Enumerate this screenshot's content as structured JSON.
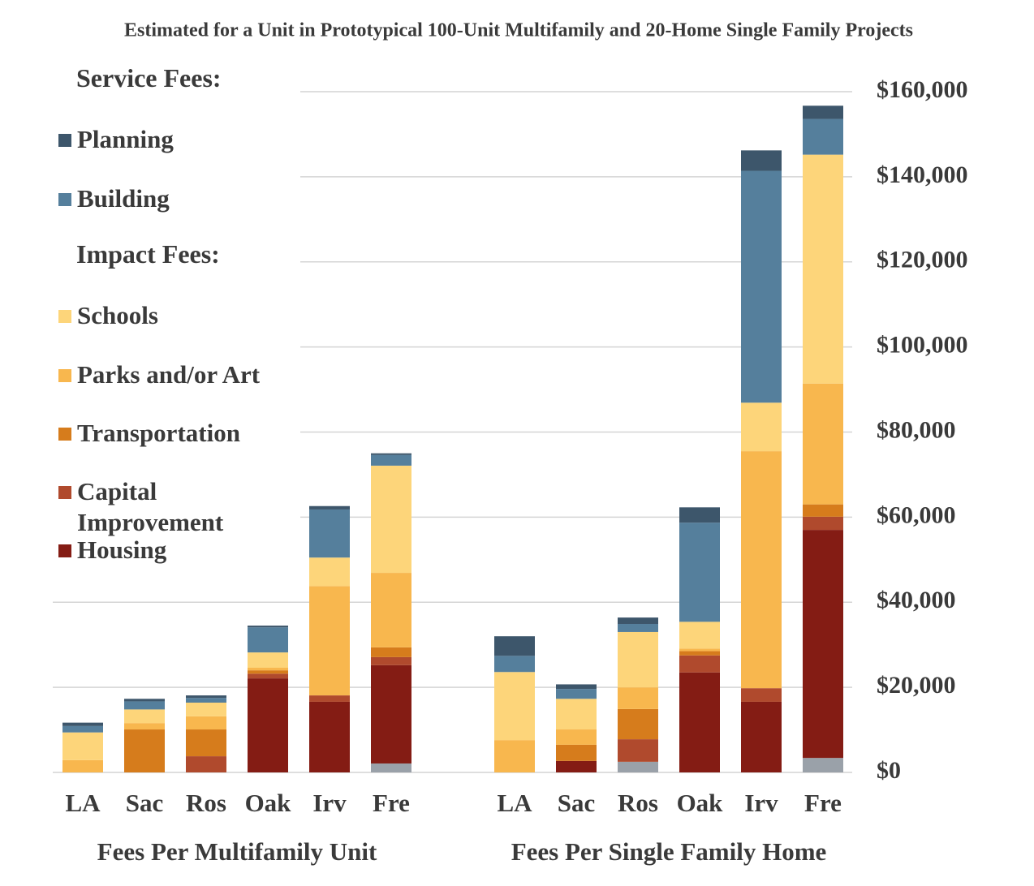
{
  "chart_data": {
    "type": "stacked-bar",
    "title": "Estimated for a Unit in Prototypical 100-Unit Multifamily and 20-Home Single Family Projects",
    "legend_headings": [
      "Service Fees:",
      "Impact Fees:"
    ],
    "group_labels": [
      "Fees Per Multifamily Unit",
      "Fees Per Single Family Home"
    ],
    "categories": [
      "LA",
      "Sac",
      "Ros",
      "Oak",
      "Irv",
      "Fre",
      "LA",
      "Sac",
      "Ros",
      "Oak",
      "Irv",
      "Fre"
    ],
    "series": [
      {
        "color": "#9aa1a9",
        "values": [
          0,
          0,
          0,
          0,
          0,
          2100,
          0,
          0,
          2500,
          0,
          0,
          3400
        ]
      },
      {
        "name": "Housing",
        "color": "#841c14",
        "values": [
          0,
          0,
          0,
          22100,
          16600,
          23100,
          0,
          2700,
          0,
          23500,
          16600,
          53600
        ]
      },
      {
        "name": "Capital Improvement",
        "color": "#b04a2d",
        "values": [
          0,
          0,
          3800,
          1100,
          1500,
          1900,
          0,
          0,
          5300,
          4000,
          3200,
          3100
        ]
      },
      {
        "name": "Transportation",
        "color": "#d67c1c",
        "values": [
          0,
          10100,
          6300,
          800,
          0,
          2300,
          0,
          3800,
          7100,
          1000,
          0,
          2900
        ]
      },
      {
        "name": "Parks and/or Art",
        "color": "#f8b74e",
        "values": [
          2900,
          1500,
          3100,
          600,
          25700,
          17500,
          7600,
          3600,
          5100,
          600,
          55700,
          28400
        ]
      },
      {
        "name": "Schools",
        "color": "#fdd57a",
        "values": [
          6500,
          3200,
          3200,
          3600,
          6700,
          25200,
          16000,
          7200,
          13000,
          6300,
          11400,
          53800
        ]
      },
      {
        "name": "Building",
        "color": "#557f9c",
        "values": [
          1500,
          1900,
          1100,
          5900,
          11300,
          2500,
          3800,
          2300,
          1900,
          23300,
          54500,
          8400
        ]
      },
      {
        "name": "Planning",
        "color": "#3d566b",
        "values": [
          800,
          600,
          600,
          400,
          800,
          400,
          4600,
          1100,
          1500,
          3600,
          4800,
          3100
        ]
      }
    ],
    "ylim": [
      0,
      160000
    ],
    "yticks": [
      {
        "value": 0,
        "label": "$0"
      },
      {
        "value": 20000,
        "label": "$20,000"
      },
      {
        "value": 40000,
        "label": "$40,000"
      },
      {
        "value": 60000,
        "label": "$60,000"
      },
      {
        "value": 80000,
        "label": "$80,000"
      },
      {
        "value": 100000,
        "label": "$100,000"
      },
      {
        "value": 120000,
        "label": "$120,000"
      },
      {
        "value": 140000,
        "label": "$140,000"
      },
      {
        "value": 160000,
        "label": "$160,000"
      }
    ],
    "grid": true
  }
}
